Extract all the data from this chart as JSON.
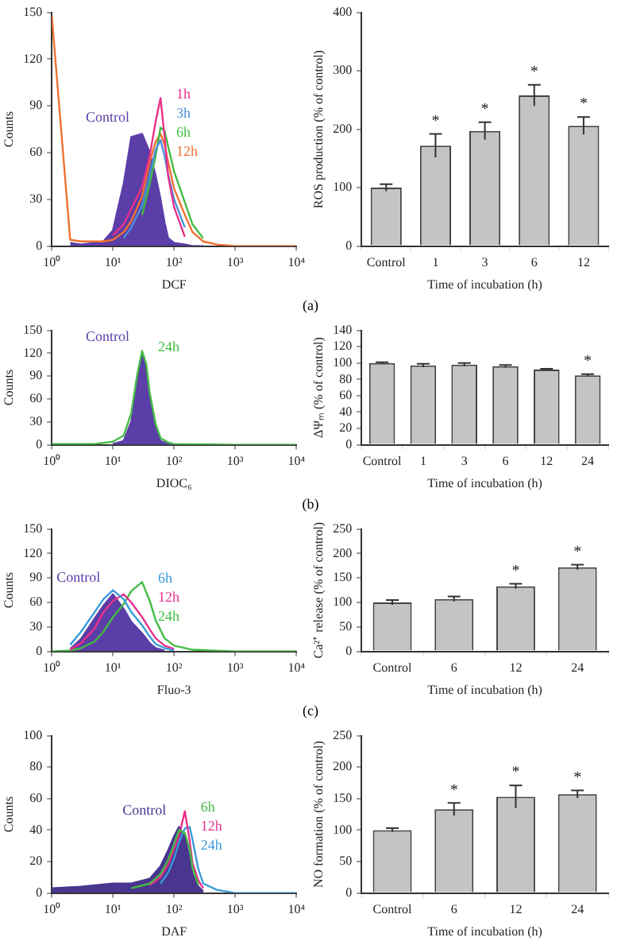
{
  "chart_data": [
    {
      "type": "line",
      "xlabel": "DCF",
      "ylabel": "Counts",
      "log": "x",
      "xlim": [
        1,
        10000
      ],
      "xticks": [
        {
          "value": 1,
          "label": "10⁰"
        },
        {
          "value": 10,
          "label": "10¹"
        },
        {
          "value": 100,
          "label": "10²"
        },
        {
          "value": 1000,
          "label": "10³"
        },
        {
          "value": 10000,
          "label": "10⁴"
        }
      ],
      "ylim": [
        0,
        150
      ],
      "yticks": [
        0,
        30,
        60,
        90,
        120,
        150
      ],
      "legend": false,
      "marker": "none",
      "annotations": [
        "(a)"
      ],
      "series": [
        {
          "name": "Control",
          "type": "area",
          "color": "#5b3ea8",
          "x": [
            2,
            3,
            5,
            7,
            10,
            15,
            20,
            30,
            40,
            50,
            60,
            70,
            80,
            100,
            150,
            200,
            300
          ],
          "values": [
            2,
            1,
            2,
            3,
            10,
            40,
            70,
            72,
            60,
            45,
            30,
            15,
            5,
            2,
            1,
            0,
            0
          ]
        },
        {
          "name": "1h",
          "type": "line",
          "color": "#e8308a",
          "x": [
            10,
            15,
            20,
            30,
            40,
            50,
            60,
            70,
            80,
            100,
            150
          ],
          "values": [
            7,
            14,
            24,
            38,
            58,
            80,
            95,
            70,
            45,
            25,
            6
          ]
        },
        {
          "name": "3h",
          "type": "line",
          "color": "#4a90d9",
          "x": [
            15,
            20,
            30,
            40,
            50,
            60,
            70,
            80,
            100,
            150
          ],
          "values": [
            5,
            12,
            26,
            46,
            62,
            68,
            58,
            46,
            30,
            12
          ]
        },
        {
          "name": "6h",
          "type": "line",
          "color": "#44bb44",
          "x": [
            30,
            40,
            50,
            60,
            70,
            80,
            100,
            150,
            200,
            300
          ],
          "values": [
            20,
            40,
            58,
            76,
            74,
            64,
            48,
            28,
            14,
            5
          ]
        },
        {
          "name": "12h",
          "type": "line",
          "color": "#f07030",
          "x": [
            1,
            2,
            3,
            5,
            7,
            10,
            15,
            20,
            30,
            40,
            50,
            60,
            70,
            80,
            100,
            150,
            200,
            300,
            500,
            1000,
            10000
          ],
          "values": [
            148,
            4,
            3,
            3,
            3,
            4,
            9,
            16,
            32,
            54,
            67,
            72,
            65,
            54,
            37,
            20,
            9,
            3,
            1,
            0,
            0
          ]
        }
      ]
    },
    {
      "type": "bar",
      "xlabel": "Time of incubation (h)",
      "ylabel": "ROS production (% of control)",
      "categories": [
        "Control",
        "1",
        "3",
        "6",
        "12"
      ],
      "values": [
        100,
        172,
        197,
        258,
        206
      ],
      "errors": [
        6,
        20,
        15,
        18,
        15
      ],
      "color": "#c4c4c4",
      "ylim": [
        0,
        400
      ],
      "yticks": [
        0,
        100,
        200,
        300,
        400
      ],
      "legend": false,
      "annotations": [
        {
          "text": "*",
          "x": "1",
          "y": 192
        },
        {
          "text": "*",
          "x": "3",
          "y": 212
        },
        {
          "text": "*",
          "x": "6",
          "y": 276
        },
        {
          "text": "*",
          "x": "12",
          "y": 221
        }
      ]
    },
    {
      "type": "line",
      "xlabel": "DIOC₆",
      "ylabel": "Counts",
      "log": "x",
      "xlim": [
        1,
        10000
      ],
      "xticks": [
        {
          "value": 1,
          "label": "10⁰"
        },
        {
          "value": 10,
          "label": "10¹"
        },
        {
          "value": 100,
          "label": "10²"
        },
        {
          "value": 1000,
          "label": "10³"
        },
        {
          "value": 10000,
          "label": "10⁴"
        }
      ],
      "ylim": [
        0,
        150
      ],
      "yticks": [
        0,
        30,
        60,
        90,
        120,
        150
      ],
      "legend": false,
      "marker": "none",
      "annotations": [
        "(b)"
      ],
      "series": [
        {
          "name": "Control",
          "type": "area",
          "color": "#5b3ea8",
          "x": [
            10,
            15,
            20,
            25,
            30,
            35,
            40,
            50,
            60,
            80,
            100
          ],
          "values": [
            1,
            5,
            30,
            80,
            120,
            100,
            60,
            20,
            5,
            1,
            0
          ]
        },
        {
          "name": "24h",
          "type": "line",
          "color": "#44bb44",
          "x": [
            1,
            5,
            10,
            15,
            20,
            25,
            30,
            35,
            40,
            50,
            60,
            80,
            100,
            1000,
            10000
          ],
          "values": [
            1,
            1,
            4,
            12,
            42,
            92,
            123,
            106,
            68,
            27,
            9,
            3,
            1,
            0,
            0
          ]
        }
      ]
    },
    {
      "type": "bar",
      "xlabel": "Time of incubation (h)",
      "ylabel": "ΔΨₘ (% of control)",
      "categories": [
        "Control",
        "1",
        "3",
        "6",
        "12",
        "24"
      ],
      "values": [
        100,
        97,
        98,
        96,
        92,
        85
      ],
      "errors": [
        1,
        2,
        2,
        1.5,
        1,
        1.5
      ],
      "color": "#c4c4c4",
      "ylim": [
        0,
        140
      ],
      "yticks": [
        0,
        20,
        40,
        60,
        80,
        100,
        120,
        140
      ],
      "legend": false,
      "annotations": [
        {
          "text": "*",
          "x": "24",
          "y": 86.5
        }
      ]
    },
    {
      "type": "line",
      "xlabel": "Fluo-3",
      "ylabel": "Counts",
      "log": "x",
      "xlim": [
        1,
        10000
      ],
      "xticks": [
        {
          "value": 1,
          "label": "10⁰"
        },
        {
          "value": 10,
          "label": "10¹"
        },
        {
          "value": 100,
          "label": "10²"
        },
        {
          "value": 1000,
          "label": "10³"
        },
        {
          "value": 10000,
          "label": "10⁴"
        }
      ],
      "ylim": [
        0,
        150
      ],
      "yticks": [
        0,
        30,
        60,
        90,
        120,
        150
      ],
      "legend": false,
      "marker": "none",
      "annotations": [
        "(c)"
      ],
      "series": [
        {
          "name": "Control",
          "type": "area",
          "color": "#5b3ea8",
          "x": [
            2,
            3,
            5,
            7,
            10,
            15,
            20,
            30,
            40,
            50,
            70
          ],
          "values": [
            3,
            15,
            40,
            56,
            70,
            52,
            36,
            22,
            10,
            4,
            1
          ]
        },
        {
          "name": "6h",
          "type": "line",
          "color": "#3a9ad9",
          "x": [
            2,
            3,
            5,
            7,
            10,
            15,
            20,
            30,
            40,
            50,
            70,
            100
          ],
          "values": [
            8,
            24,
            48,
            64,
            75,
            64,
            48,
            32,
            18,
            9,
            4,
            1
          ]
        },
        {
          "name": "12h",
          "type": "line",
          "color": "#e8308a",
          "x": [
            2,
            3,
            5,
            7,
            10,
            15,
            20,
            30,
            40,
            50,
            70,
            100
          ],
          "values": [
            2,
            10,
            28,
            48,
            62,
            70,
            60,
            42,
            27,
            16,
            7,
            3
          ]
        },
        {
          "name": "24h",
          "type": "line",
          "color": "#44bb44",
          "x": [
            1,
            2,
            3,
            5,
            7,
            10,
            15,
            20,
            30,
            40,
            50,
            70,
            100,
            200,
            1000,
            10000
          ],
          "values": [
            0,
            1,
            4,
            12,
            24,
            42,
            58,
            74,
            85,
            62,
            38,
            16,
            7,
            2,
            0,
            0
          ]
        }
      ]
    },
    {
      "type": "bar",
      "xlabel": "Time of incubation (h)",
      "ylabel": "Ca²⁺ release (% of control)",
      "categories": [
        "Control",
        "6",
        "12",
        "24"
      ],
      "values": [
        100,
        107,
        133,
        172
      ],
      "errors": [
        5,
        5,
        5,
        5
      ],
      "color": "#c4c4c4",
      "ylim": [
        0,
        250
      ],
      "yticks": [
        0,
        50,
        100,
        150,
        200,
        250
      ],
      "legend": false,
      "annotations": [
        {
          "text": "*",
          "x": "12",
          "y": 138
        },
        {
          "text": "*",
          "x": "24",
          "y": 177
        }
      ]
    },
    {
      "type": "line",
      "xlabel": "DAF",
      "ylabel": "Counts",
      "log": "x",
      "xlim": [
        1,
        10000
      ],
      "xticks": [
        {
          "value": 1,
          "label": "10⁰"
        },
        {
          "value": 10,
          "label": "10¹"
        },
        {
          "value": 100,
          "label": "10²"
        },
        {
          "value": 1000,
          "label": "10³"
        },
        {
          "value": 10000,
          "label": "10⁴"
        }
      ],
      "ylim": [
        0,
        100
      ],
      "yticks": [
        0,
        20,
        40,
        60,
        80,
        100
      ],
      "legend": false,
      "marker": "none",
      "series": [
        {
          "name": "Control",
          "type": "area",
          "color": "#4a3590",
          "x": [
            1,
            3,
            10,
            20,
            40,
            60,
            80,
            100,
            120,
            150,
            180,
            200,
            250,
            300
          ],
          "values": [
            3,
            4,
            6,
            6,
            9,
            17,
            27,
            36,
            42,
            36,
            22,
            12,
            4,
            1
          ]
        },
        {
          "name": "6h",
          "type": "line",
          "color": "#44bb44",
          "x": [
            20,
            40,
            60,
            80,
            100,
            120,
            150,
            180,
            200,
            250
          ],
          "values": [
            3,
            6,
            12,
            21,
            31,
            40,
            38,
            28,
            16,
            5
          ]
        },
        {
          "name": "12h",
          "type": "line",
          "color": "#e8308a",
          "x": [
            40,
            60,
            80,
            100,
            120,
            150,
            180,
            200,
            250,
            300
          ],
          "values": [
            5,
            10,
            18,
            28,
            36,
            52,
            33,
            19,
            8,
            3
          ]
        },
        {
          "name": "24h",
          "type": "line",
          "color": "#3a9ad9",
          "x": [
            60,
            80,
            100,
            120,
            150,
            180,
            200,
            250,
            300,
            500,
            1000,
            10000
          ],
          "values": [
            6,
            13,
            22,
            32,
            41,
            42,
            34,
            15,
            6,
            2,
            0,
            0
          ]
        }
      ]
    },
    {
      "type": "bar",
      "xlabel": "Time of incubation (h)",
      "ylabel": "NO formation (% of control)",
      "categories": [
        "Control",
        "6",
        "12",
        "24"
      ],
      "values": [
        100,
        133,
        153,
        157
      ],
      "errors": [
        3,
        10,
        18,
        6
      ],
      "color": "#c4c4c4",
      "ylim": [
        0,
        250
      ],
      "yticks": [
        0,
        50,
        100,
        150,
        200,
        250
      ],
      "legend": false,
      "annotations": [
        {
          "text": "*",
          "x": "6",
          "y": 143
        },
        {
          "text": "*",
          "x": "12",
          "y": 171
        },
        {
          "text": "*",
          "x": "24",
          "y": 163
        }
      ]
    }
  ]
}
